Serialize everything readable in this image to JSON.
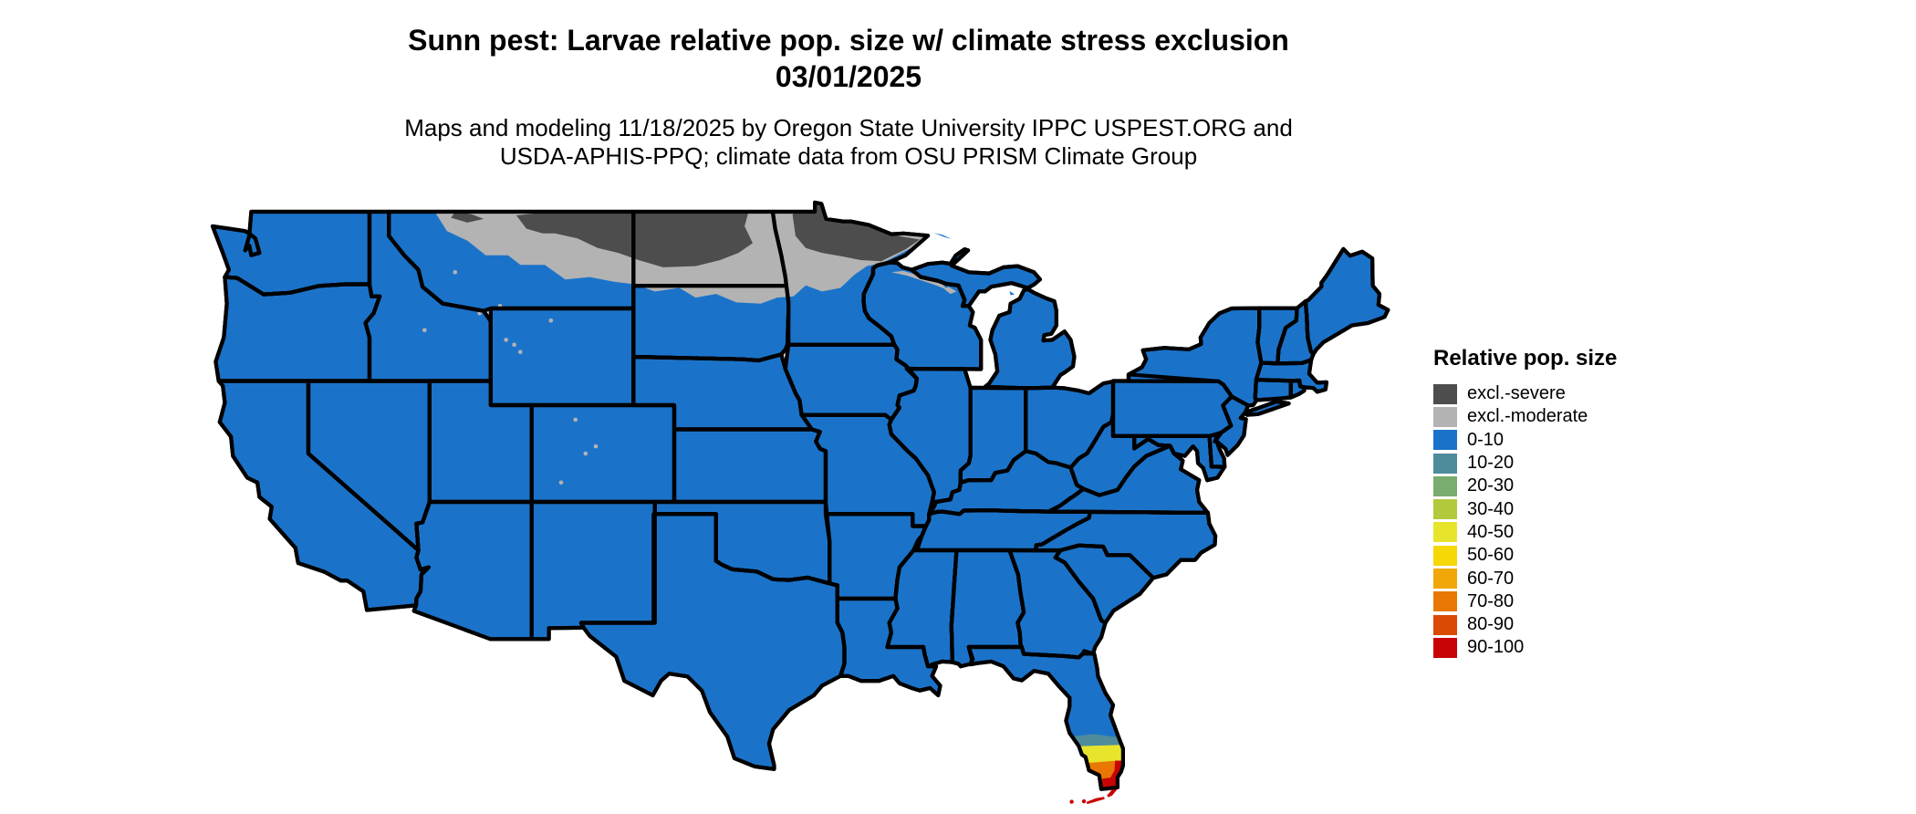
{
  "title": {
    "line1": "Sunn pest: Larvae relative pop. size w/ climate stress exclusion",
    "line2": "03/01/2025"
  },
  "subtitle": {
    "line1": "Maps and modeling 11/18/2025 by Oregon State University IPPC USPEST.ORG and",
    "line2": "USDA-APHIS-PPQ; climate data from OSU PRISM Climate Group"
  },
  "legend": {
    "title": "Relative pop. size",
    "items": [
      {
        "label": "excl.-severe",
        "color": "#4D4D4D"
      },
      {
        "label": "excl.-moderate",
        "color": "#B3B3B3"
      },
      {
        "label": "0-10",
        "color": "#1B73C9"
      },
      {
        "label": "10-20",
        "color": "#4E8C9C"
      },
      {
        "label": "20-30",
        "color": "#79AC6F"
      },
      {
        "label": "30-40",
        "color": "#B2C93C"
      },
      {
        "label": "40-50",
        "color": "#E7E42C"
      },
      {
        "label": "50-60",
        "color": "#F6D807"
      },
      {
        "label": "60-70",
        "color": "#F1A707"
      },
      {
        "label": "70-80",
        "color": "#E87803"
      },
      {
        "label": "80-90",
        "color": "#DB4A05"
      },
      {
        "label": "90-100",
        "color": "#C80406"
      }
    ]
  },
  "map": {
    "background_color": "#FFFFFF",
    "state_border_color": "#000000",
    "base_class": "0-10",
    "exclusion_zones": "northern Montana, North Dakota, northern South Dakota, northern Minnesota, northern Wisconsin",
    "hotspot": "southern Florida and Florida Keys"
  }
}
